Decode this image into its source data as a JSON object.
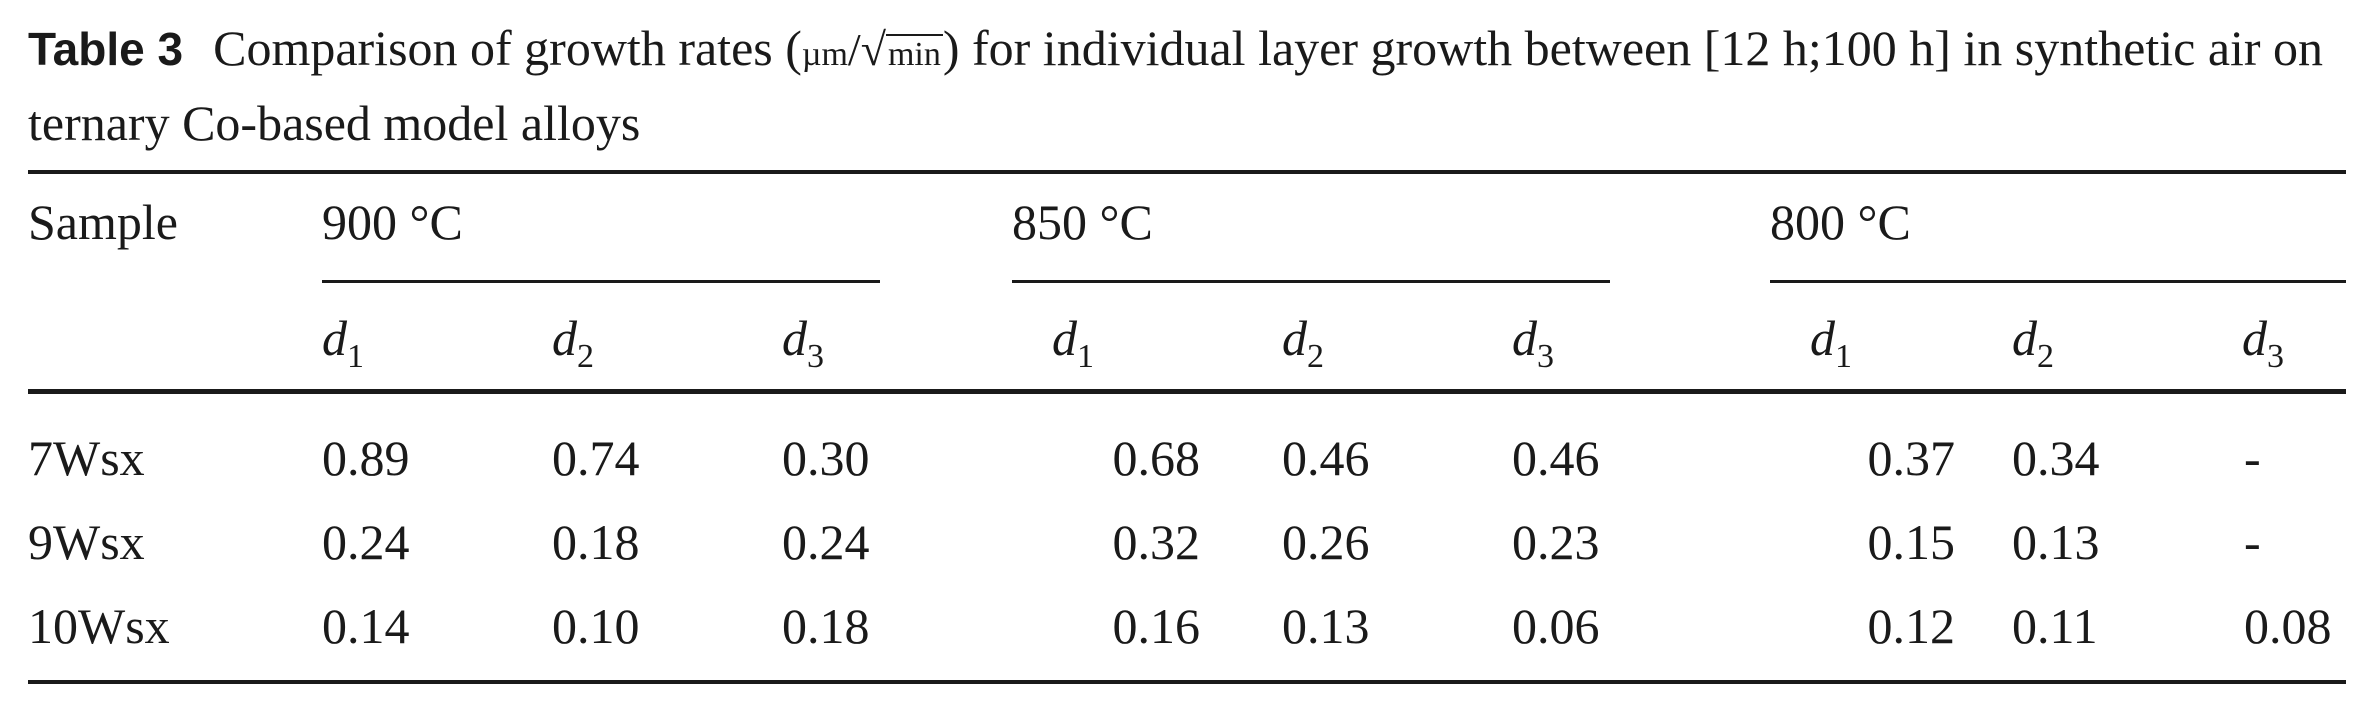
{
  "caption": {
    "label": "Table 3",
    "text_before_unit": "Comparison of growth rates (",
    "unit_num": "µm",
    "unit_slash": "/",
    "unit_sqrt": "√",
    "unit_den": "min",
    "text_after_unit": ") for individual layer growth between [12 h;100 h] in synthetic air on ternary Co-based model alloys"
  },
  "table": {
    "sample_header": "Sample",
    "groups": [
      {
        "temp": "900 °C",
        "cols": [
          {
            "sym": "d",
            "sub": "1"
          },
          {
            "sym": "d",
            "sub": "2"
          },
          {
            "sym": "d",
            "sub": "3"
          }
        ]
      },
      {
        "temp": "850 °C",
        "cols": [
          {
            "sym": "d",
            "sub": "1"
          },
          {
            "sym": "d",
            "sub": "2"
          },
          {
            "sym": "d",
            "sub": "3"
          }
        ]
      },
      {
        "temp": "800 °C",
        "cols": [
          {
            "sym": "d",
            "sub": "1"
          },
          {
            "sym": "d",
            "sub": "2"
          },
          {
            "sym": "d",
            "sub": "3"
          }
        ]
      }
    ],
    "rows": [
      {
        "sample": "7Wsx",
        "values": [
          "0.89",
          "0.74",
          "0.30",
          "0.68",
          "0.46",
          "0.46",
          "0.37",
          "0.34",
          "-"
        ]
      },
      {
        "sample": "9Wsx",
        "values": [
          "0.24",
          "0.18",
          "0.24",
          "0.32",
          "0.26",
          "0.23",
          "0.15",
          "0.13",
          "-"
        ]
      },
      {
        "sample": "10Wsx",
        "values": [
          "0.14",
          "0.10",
          "0.18",
          "0.16",
          "0.13",
          "0.06",
          "0.12",
          "0.11",
          "0.08"
        ]
      }
    ]
  }
}
